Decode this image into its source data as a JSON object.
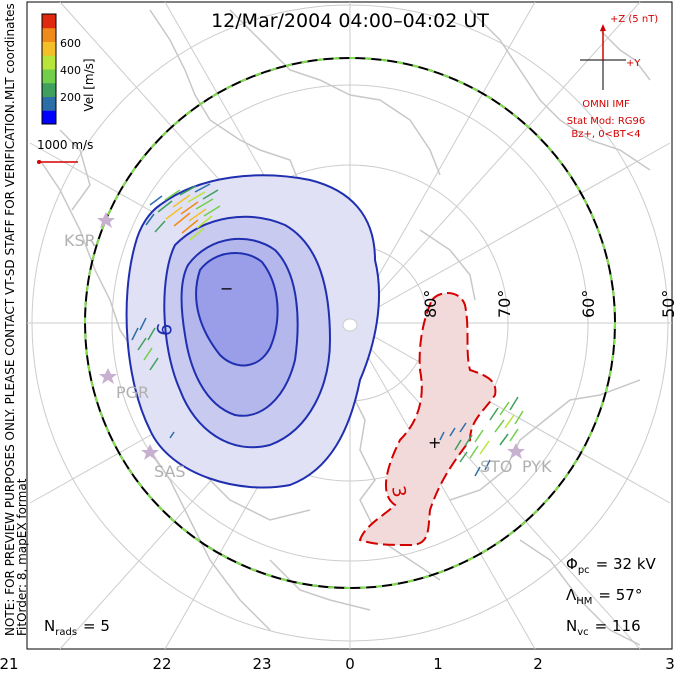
{
  "title": "12/Mar/2004 04:00–04:02 UT",
  "colorbar": {
    "label": "Vel [m/s]",
    "ticks": [
      "600",
      "400",
      "200"
    ],
    "colors": [
      "#0000ff",
      "#2c6ea8",
      "#3f9f5c",
      "#71cf4a",
      "#b9e43a",
      "#f3c02a",
      "#f08a1a",
      "#e02a10"
    ]
  },
  "left_notes": {
    "coordinates": "MLT coordinates",
    "preview": "NOTE: FOR PREVIEW PURPOSES ONLY. PLEASE CONTACT VT-SD STAFF FOR VERIFICATION.",
    "fit": "FitOrder: 8, mapEX format"
  },
  "vector_scale": "1000 m/s",
  "imf": {
    "z_label": "+Z (5 nT)",
    "y_label": "+Y",
    "source": "OMNI IMF",
    "stat_mod": "Stat Mod: RG96",
    "condition": "Bz+, 0<BT<4"
  },
  "latitude_labels": [
    "80°",
    "70°",
    "60°",
    "50°"
  ],
  "radar_labels": [
    "KSR",
    "PGR",
    "SAS",
    "STO",
    "PYK"
  ],
  "contour_labels": [
    "9",
    "3"
  ],
  "extrema_marks": [
    "−",
    "+"
  ],
  "stats": {
    "phi_main": "Φ",
    "phi_sub": "pc",
    "phi_value": "= 32 kV",
    "lambda_main": "Λ",
    "lambda_sub": "HM",
    "lambda_value": "= 57°",
    "nvc_main": "N",
    "nvc_sub": "vc",
    "nvc_value": "= 116",
    "nrads_main": "N",
    "nrads_sub": "rads",
    "nrads_value": "= 5"
  },
  "mlt_axis": [
    "21",
    "22",
    "23",
    "0",
    "1",
    "2",
    "3"
  ],
  "colors": {
    "negative_cell": "#9a9ee8",
    "positive_cell": "#f2dada",
    "contour_neg": "#1f2fb0",
    "contour_pos": "#d40000",
    "coast": "#c8c8c8",
    "grid": "#cccccc"
  }
}
